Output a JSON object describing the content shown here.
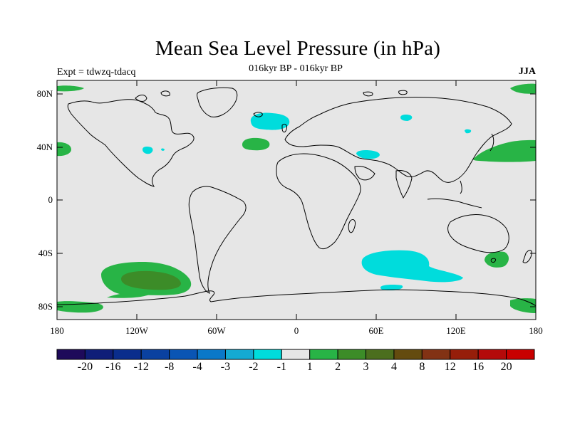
{
  "title": "Mean Sea Level Pressure (in hPa)",
  "subtitle": "016kyr BP - 016kyr BP",
  "experiment_label": "Expt = tdwzq-tdacq",
  "season": "JJA",
  "map": {
    "projection": "cylindrical equidistant",
    "lat_range": [
      -90,
      90
    ],
    "lon_range": [
      -180,
      180
    ],
    "background_color": "#e6e6e6",
    "coastline_color": "#000000",
    "lat_ticks": [
      "80N",
      "40N",
      "0",
      "40S",
      "80S"
    ],
    "lon_ticks": [
      "180",
      "120W",
      "60W",
      "0",
      "60E",
      "120E",
      "180"
    ]
  },
  "colorbar": {
    "colors": [
      "#1e0a5a",
      "#0f1e78",
      "#0a2d8c",
      "#0a41a0",
      "#0a55b4",
      "#0a78c8",
      "#14aad2",
      "#00dcdc",
      "#e6e6e6",
      "#28b446",
      "#3c8c28",
      "#4b6e1e",
      "#644b0f",
      "#823214",
      "#961e0a",
      "#b40a0a",
      "#c80000"
    ],
    "labels": [
      "-20",
      "-16",
      "-12",
      "-8",
      "-4",
      "-3",
      "-2",
      "-1",
      "1",
      "2",
      "3",
      "4",
      "8",
      "12",
      "16",
      "20"
    ]
  },
  "anomaly_regions": [
    {
      "name": "North Atlantic low",
      "lon": -35,
      "lat": 61,
      "class": "-2 to -1",
      "color": "#00dcdc"
    },
    {
      "name": "Mid-Atlantic high",
      "lon": -30,
      "lat": 42,
      "class": "1 to 2",
      "color": "#28b446"
    },
    {
      "name": "NW Pacific high",
      "lon": 165,
      "lat": 38,
      "class": "1 to 2",
      "color": "#28b446"
    },
    {
      "name": "South Indian Ocean low",
      "lon": 70,
      "lat": -50,
      "class": "-2 to -1",
      "color": "#00dcdc"
    },
    {
      "name": "South Pacific high",
      "lon": -110,
      "lat": -60,
      "class": "2 to 3",
      "color": "#3c8c28"
    }
  ]
}
